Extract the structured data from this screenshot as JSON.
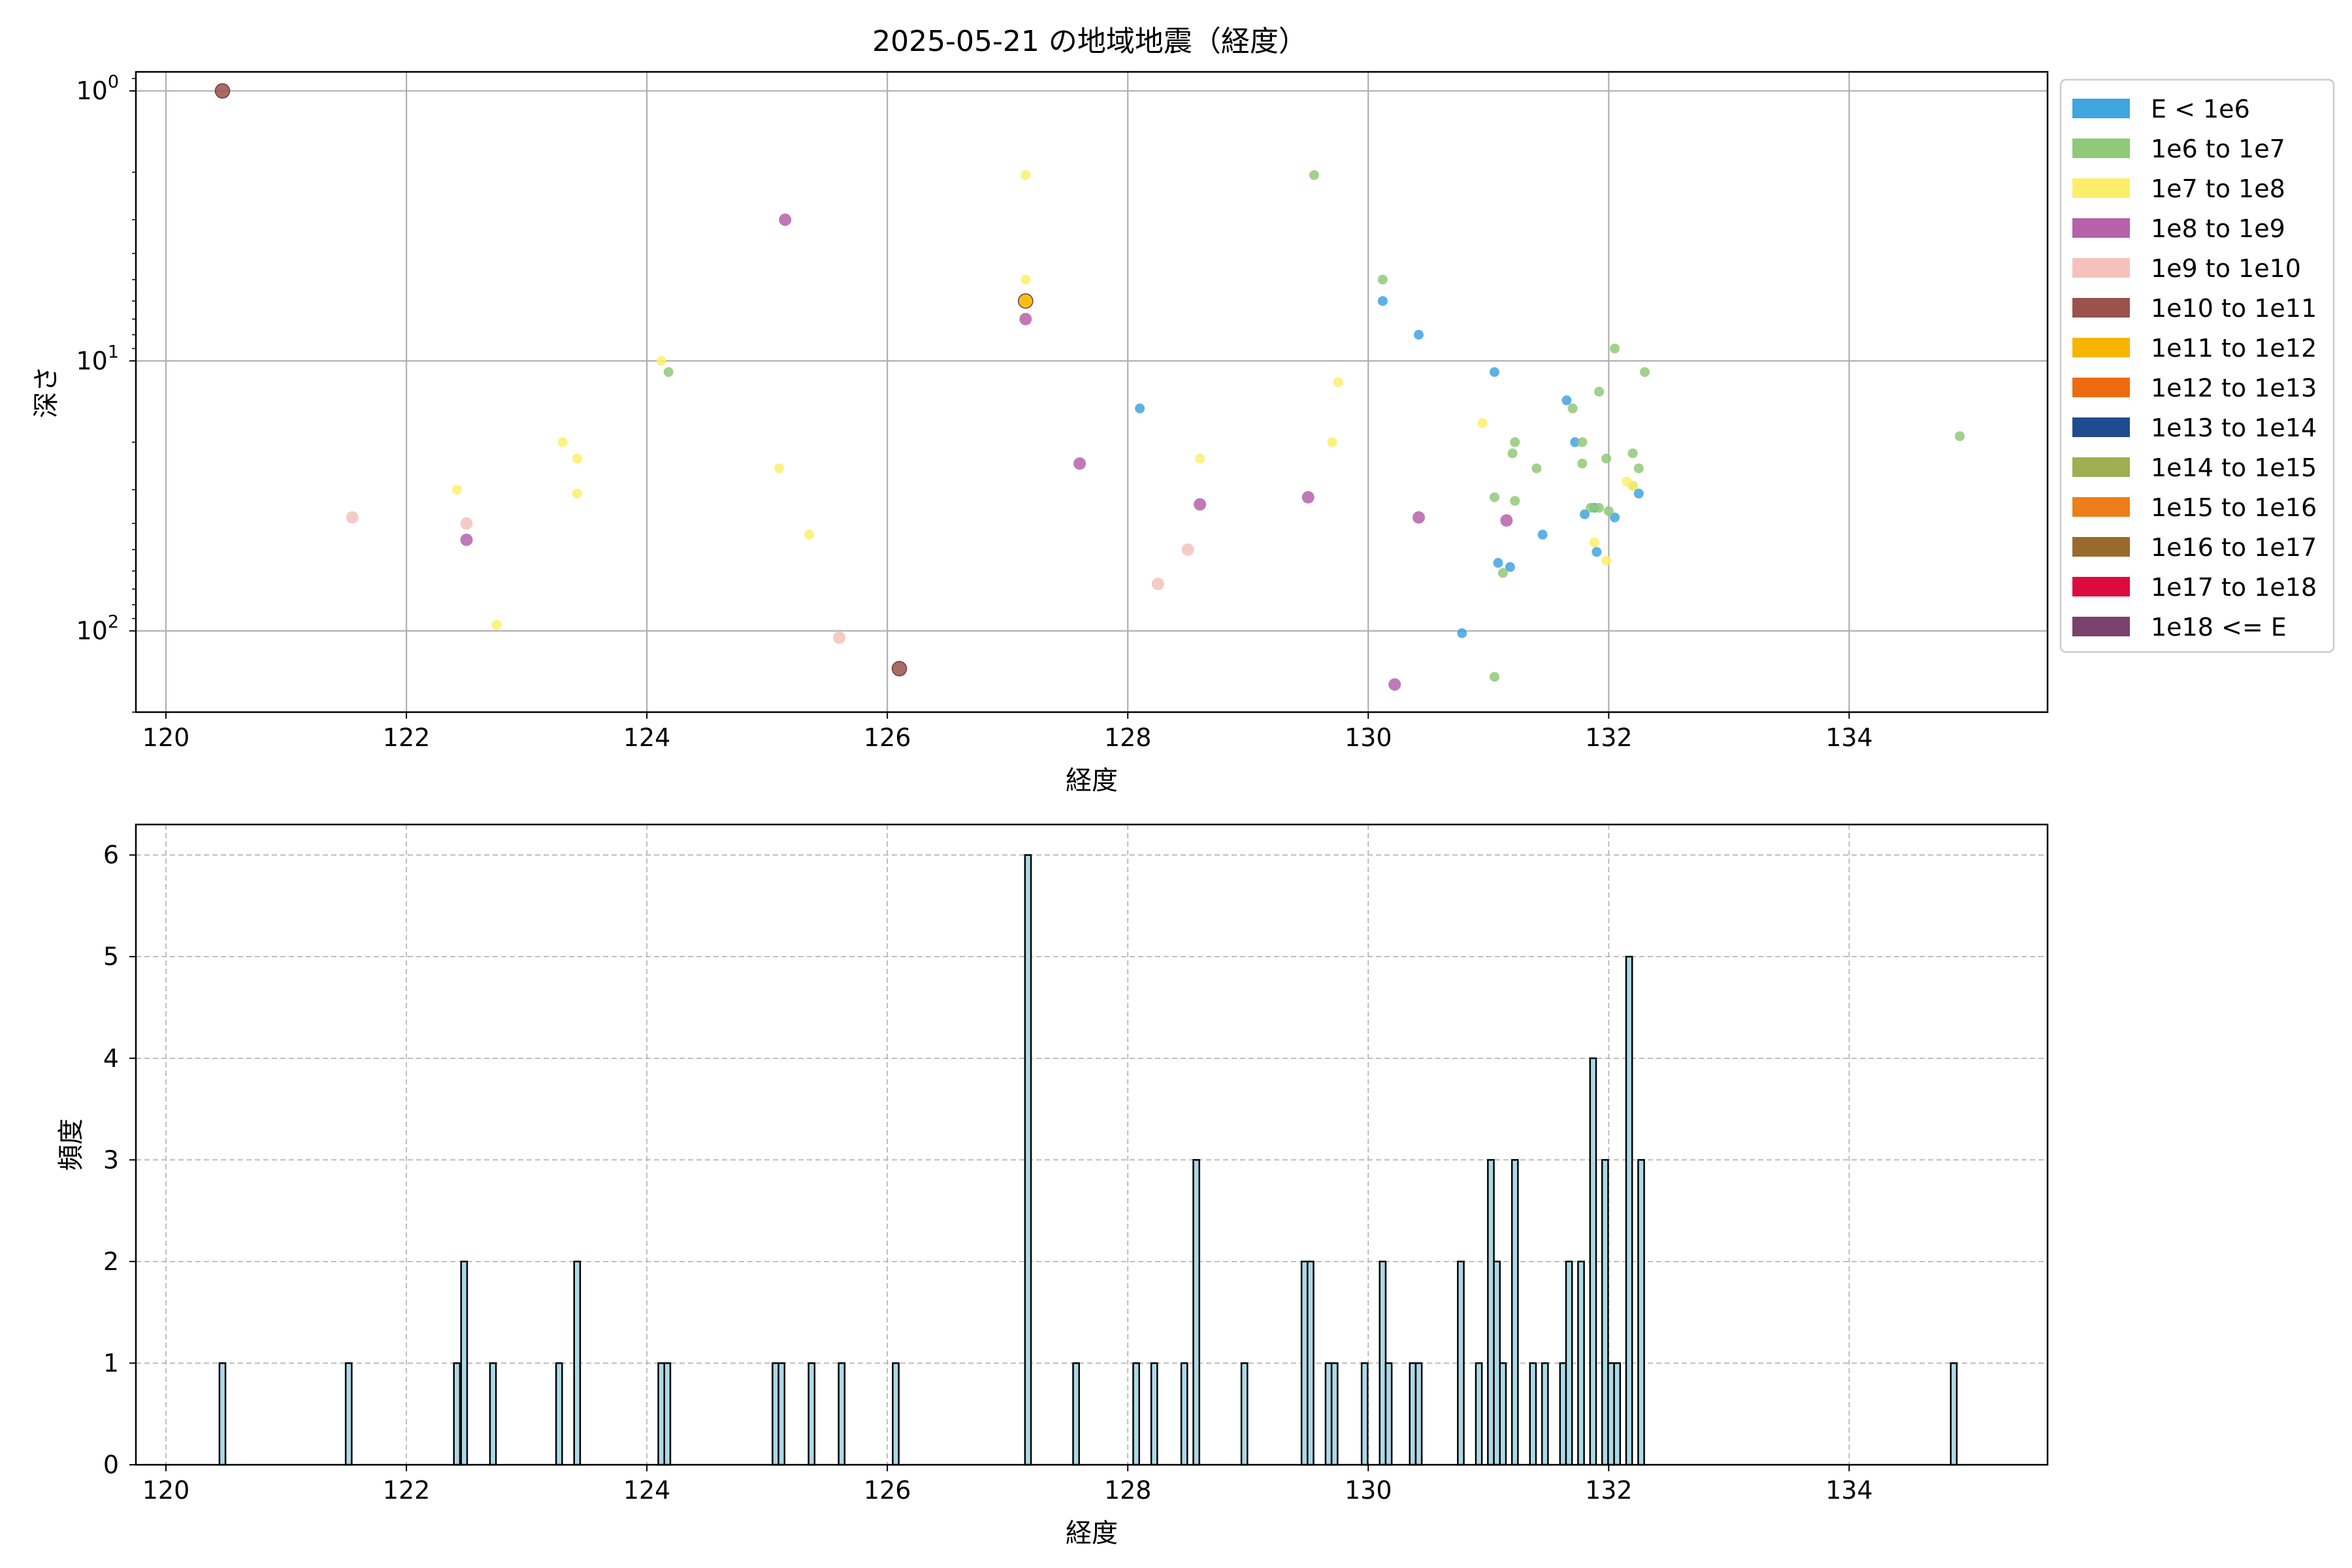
{
  "chart_data": [
    {
      "type": "scatter",
      "title": "2025-05-21 の地域地震（経度）",
      "xlabel": "経度",
      "ylabel": "深さ",
      "xlim": [
        119.75,
        135.65
      ],
      "ylim": [
        200,
        0.85
      ],
      "yscale": "log",
      "y_inverted": true,
      "x_ticks": [
        "120",
        "122",
        "124",
        "126",
        "128",
        "130",
        "132",
        "134"
      ],
      "x_tick_values": [
        120,
        122,
        124,
        126,
        128,
        130,
        132,
        134
      ],
      "y_tick_values": [
        1,
        10,
        100
      ],
      "grid": true,
      "legend_position": "outside right",
      "legend": [
        {
          "label": "E < 1e6",
          "color": "#3fa5df"
        },
        {
          "label": "1e6 to 1e7",
          "color": "#90c978"
        },
        {
          "label": "1e7 to 1e8",
          "color": "#fdee6a"
        },
        {
          "label": "1e8 to 1e9",
          "color": "#b562a8"
        },
        {
          "label": "1e9 to 1e10",
          "color": "#f5c2bb"
        },
        {
          "label": "1e10 to 1e11",
          "color": "#9b514c"
        },
        {
          "label": "1e11 to 1e12",
          "color": "#f7b400"
        },
        {
          "label": "1e12 to 1e13",
          "color": "#ee6a0e"
        },
        {
          "label": "1e13 to 1e14",
          "color": "#1f4b91"
        },
        {
          "label": "1e14 to 1e15",
          "color": "#9eae50"
        },
        {
          "label": "1e15 to 1e16",
          "color": "#ee7d1b"
        },
        {
          "label": "1e16 to 1e17",
          "color": "#986a2b"
        },
        {
          "label": "1e17 to 1e18",
          "color": "#dd0b3d"
        },
        {
          "label": "1e18 <= E",
          "color": "#7a416b"
        }
      ],
      "series": [
        {
          "name": "E < 1e6",
          "color": "#3fa5df",
          "points": [
            [
              128.1,
              15
            ],
            [
              130.12,
              6
            ],
            [
              130.42,
              8
            ],
            [
              131.05,
              11
            ],
            [
              131.65,
              14
            ],
            [
              131.72,
              20
            ],
            [
              131.45,
              44
            ],
            [
              131.18,
              58
            ],
            [
              131.08,
              56
            ],
            [
              131.8,
              37
            ],
            [
              131.88,
              35
            ],
            [
              131.9,
              51
            ],
            [
              132.05,
              38
            ],
            [
              132.25,
              31
            ],
            [
              130.78,
              102
            ]
          ]
        },
        {
          "name": "1e6 to 1e7",
          "color": "#90c978",
          "points": [
            [
              129.55,
              2.05
            ],
            [
              130.12,
              5
            ],
            [
              132.05,
              9
            ],
            [
              132.3,
              11
            ],
            [
              131.92,
              13
            ],
            [
              131.7,
              15
            ],
            [
              131.78,
              20
            ],
            [
              131.22,
              20
            ],
            [
              131.2,
              22
            ],
            [
              131.4,
              25
            ],
            [
              131.98,
              23
            ],
            [
              131.78,
              24
            ],
            [
              132.2,
              22
            ],
            [
              132.25,
              25
            ],
            [
              132.2,
              29
            ],
            [
              131.05,
              32
            ],
            [
              131.22,
              33
            ],
            [
              131.85,
              35
            ],
            [
              131.92,
              35
            ],
            [
              132.0,
              36
            ],
            [
              131.12,
              61
            ],
            [
              131.05,
              148
            ],
            [
              134.92,
              19
            ],
            [
              124.18,
              11
            ]
          ]
        },
        {
          "name": "1e7 to 1e8",
          "color": "#fdee6a",
          "points": [
            [
              127.15,
              2.05
            ],
            [
              127.15,
              5
            ],
            [
              127.15,
              6
            ],
            [
              124.12,
              10
            ],
            [
              129.75,
              12
            ],
            [
              130.95,
              17
            ],
            [
              129.7,
              20
            ],
            [
              123.3,
              20
            ],
            [
              123.42,
              23
            ],
            [
              128.6,
              23
            ],
            [
              125.1,
              25
            ],
            [
              122.42,
              30
            ],
            [
              123.42,
              31
            ],
            [
              132.15,
              28
            ],
            [
              132.2,
              29
            ],
            [
              131.88,
              47
            ],
            [
              131.98,
              55
            ],
            [
              125.35,
              44
            ],
            [
              122.75,
              95
            ]
          ]
        },
        {
          "name": "1e8 to 1e9",
          "color": "#b562a8",
          "points": [
            [
              125.15,
              3
            ],
            [
              127.15,
              7
            ],
            [
              127.6,
              24
            ],
            [
              128.6,
              34
            ],
            [
              129.5,
              32
            ],
            [
              130.42,
              38
            ],
            [
              131.15,
              39
            ],
            [
              122.5,
              46
            ],
            [
              130.22,
              158
            ]
          ]
        },
        {
          "name": "1e9 to 1e10",
          "color": "#f5c2bb",
          "points": [
            [
              121.55,
              38
            ],
            [
              122.5,
              40
            ],
            [
              128.5,
              50
            ],
            [
              128.25,
              67
            ],
            [
              125.6,
              106
            ]
          ]
        },
        {
          "name": "1e10 to 1e11",
          "color": "#9b514c",
          "points": [
            [
              120.47,
              1.0
            ],
            [
              126.1,
              138
            ]
          ]
        },
        {
          "name": "1e11 to 1e12",
          "color": "#f7b400",
          "points": [
            [
              127.15,
              6
            ]
          ]
        }
      ]
    },
    {
      "type": "bar",
      "title": "",
      "xlabel": "経度",
      "ylabel": "頻度",
      "xlim": [
        119.75,
        135.65
      ],
      "ylim": [
        0,
        6.3
      ],
      "x_ticks": [
        "120",
        "122",
        "124",
        "126",
        "128",
        "130",
        "132",
        "134"
      ],
      "x_tick_values": [
        120,
        122,
        124,
        126,
        128,
        130,
        132,
        134
      ],
      "y_ticks": [
        "0",
        "1",
        "2",
        "3",
        "4",
        "5",
        "6"
      ],
      "y_tick_values": [
        0,
        1,
        2,
        3,
        4,
        5,
        6
      ],
      "grid": true,
      "bar_color": "#add8e6",
      "edge_color": "#000000",
      "bin_width": 0.05,
      "x": [
        120.47,
        121.52,
        122.42,
        122.48,
        122.72,
        123.27,
        123.42,
        124.12,
        124.17,
        125.07,
        125.12,
        125.37,
        125.62,
        126.07,
        127.17,
        127.57,
        128.07,
        128.22,
        128.47,
        128.57,
        128.97,
        129.47,
        129.52,
        129.67,
        129.72,
        129.97,
        130.12,
        130.17,
        130.37,
        130.42,
        130.77,
        130.92,
        131.02,
        131.07,
        131.12,
        131.22,
        131.37,
        131.47,
        131.62,
        131.67,
        131.77,
        131.87,
        131.97,
        132.02,
        132.07,
        132.17,
        132.27,
        134.87
      ],
      "values": [
        1,
        1,
        1,
        2,
        1,
        1,
        2,
        1,
        1,
        1,
        1,
        1,
        1,
        1,
        6,
        1,
        1,
        1,
        1,
        3,
        1,
        2,
        2,
        1,
        1,
        1,
        2,
        1,
        1,
        1,
        2,
        1,
        3,
        2,
        1,
        3,
        1,
        1,
        1,
        2,
        2,
        4,
        3,
        1,
        1,
        5,
        3,
        1
      ]
    }
  ]
}
